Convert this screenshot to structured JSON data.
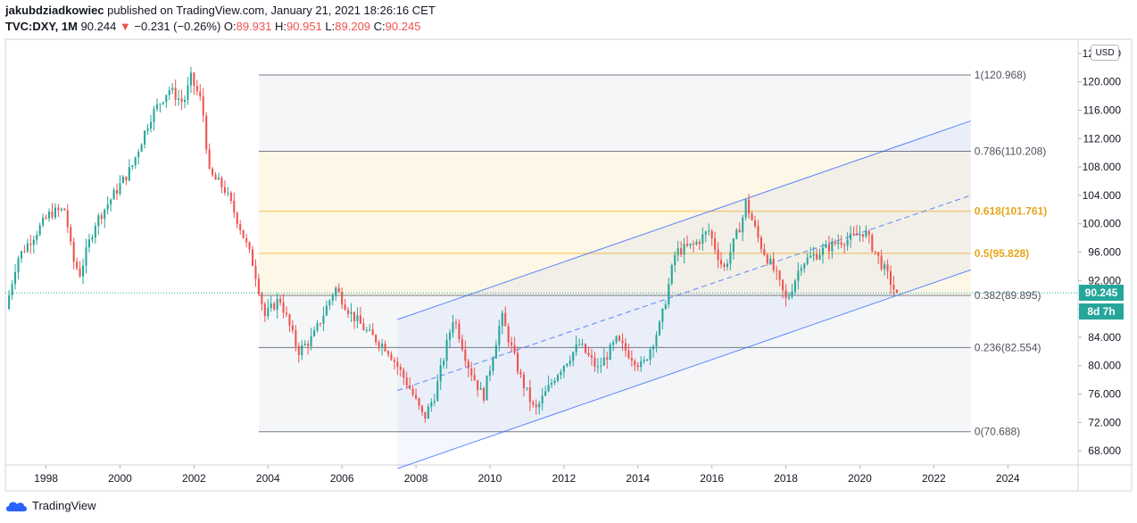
{
  "header": {
    "author": "jakubdziadkowiec",
    "published_text": " published on TradingView.com, January 21, 2021 18:26:16 CET",
    "symbol": "TVC:DXY, 1M",
    "last": "90.244",
    "change_arrow": "▼",
    "change": "−0.231 (−0.26%)",
    "o_label": "O:",
    "o_value": "89.931",
    "h_label": "H:",
    "h_value": "90.951",
    "l_label": "L:",
    "l_value": "89.209",
    "c_label": "C:",
    "c_value": "90.245"
  },
  "price_axis": {
    "currency_button": "USD",
    "current_price": "90.245",
    "countdown": "8d 7h",
    "ticks": [
      "124.000",
      "120.000",
      "116.000",
      "112.000",
      "108.000",
      "104.000",
      "100.000",
      "96.000",
      "92.000",
      "88.000",
      "84.000",
      "80.000",
      "76.000",
      "72.000",
      "68.000"
    ]
  },
  "time_axis": {
    "ticks": [
      "1998",
      "2000",
      "2002",
      "2004",
      "2006",
      "2008",
      "2010",
      "2012",
      "2014",
      "2016",
      "2018",
      "2020",
      "2022",
      "2024"
    ]
  },
  "footer": {
    "brand": "TradingView"
  },
  "colors": {
    "up": "#26a69a",
    "down": "#ef5350",
    "channel": "#2962ff",
    "fib_line": "#787b86",
    "fib_gold": "#f7c245",
    "current": "#26a69a"
  },
  "chart_data": {
    "type": "candlestick",
    "symbol": "TVC:DXY",
    "interval": "1M",
    "ylim": [
      66,
      126
    ],
    "xlim": [
      1996.9,
      2025.9
    ],
    "fib_retracement": [
      {
        "ratio": "1",
        "price": "120.968",
        "value": 120.968,
        "highlight": false
      },
      {
        "ratio": "0.786",
        "price": "110.208",
        "value": 110.208,
        "highlight": false
      },
      {
        "ratio": "0.618",
        "price": "101.761",
        "value": 101.761,
        "highlight": true
      },
      {
        "ratio": "0.5",
        "price": "95.828",
        "value": 95.828,
        "highlight": true
      },
      {
        "ratio": "0.382",
        "price": "89.895",
        "value": 89.895,
        "highlight": false
      },
      {
        "ratio": "0.236",
        "price": "82.554",
        "value": 82.554,
        "highlight": false
      },
      {
        "ratio": "0",
        "price": "70.688",
        "value": 70.688,
        "highlight": false
      }
    ],
    "fib_range": {
      "x_start": 2003.75,
      "x_end": 2023.0
    },
    "channel": {
      "upper": [
        [
          2007.5,
          86.5
        ],
        [
          2023.0,
          114.5
        ]
      ],
      "middle": [
        [
          2007.5,
          76.5
        ],
        [
          2023.0,
          104.0
        ]
      ],
      "lower": [
        [
          2007.5,
          65.5
        ],
        [
          2023.0,
          93.5
        ]
      ]
    },
    "price_path": [
      [
        1997.0,
        88.0
      ],
      [
        1997.3,
        95.0
      ],
      [
        1997.7,
        98.0
      ],
      [
        1998.2,
        101.5
      ],
      [
        1998.6,
        102.0
      ],
      [
        1998.8,
        95.0
      ],
      [
        1999.0,
        93.0
      ],
      [
        1999.4,
        100.0
      ],
      [
        1999.9,
        104.0
      ],
      [
        2000.4,
        108.0
      ],
      [
        2000.9,
        115.0
      ],
      [
        2001.4,
        119.0
      ],
      [
        2001.8,
        117.0
      ],
      [
        2002.0,
        120.5
      ],
      [
        2002.3,
        117.0
      ],
      [
        2002.5,
        107.0
      ],
      [
        2002.9,
        105.0
      ],
      [
        2003.3,
        100.0
      ],
      [
        2003.7,
        94.0
      ],
      [
        2004.0,
        87.0
      ],
      [
        2004.4,
        89.5
      ],
      [
        2004.9,
        82.0
      ],
      [
        2005.3,
        84.0
      ],
      [
        2005.9,
        91.0
      ],
      [
        2006.3,
        87.5
      ],
      [
        2006.8,
        84.5
      ],
      [
        2007.3,
        82.5
      ],
      [
        2007.9,
        77.0
      ],
      [
        2008.3,
        72.5
      ],
      [
        2008.6,
        76.0
      ],
      [
        2009.1,
        87.0
      ],
      [
        2009.5,
        80.0
      ],
      [
        2009.9,
        75.5
      ],
      [
        2010.4,
        87.0
      ],
      [
        2010.9,
        78.5
      ],
      [
        2011.3,
        73.5
      ],
      [
        2011.9,
        79.0
      ],
      [
        2012.5,
        83.0
      ],
      [
        2013.0,
        79.5
      ],
      [
        2013.5,
        83.5
      ],
      [
        2014.2,
        79.8
      ],
      [
        2014.7,
        86.0
      ],
      [
        2015.1,
        96.0
      ],
      [
        2015.6,
        97.0
      ],
      [
        2016.0,
        99.0
      ],
      [
        2016.4,
        93.5
      ],
      [
        2016.9,
        100.5
      ],
      [
        2017.0,
        103.0
      ],
      [
        2017.4,
        97.0
      ],
      [
        2017.8,
        93.0
      ],
      [
        2018.1,
        89.0
      ],
      [
        2018.5,
        94.5
      ],
      [
        2019.0,
        96.0
      ],
      [
        2019.5,
        97.5
      ],
      [
        2019.9,
        98.0
      ],
      [
        2020.2,
        99.0
      ],
      [
        2020.5,
        96.0
      ],
      [
        2020.9,
        92.0
      ],
      [
        2021.05,
        90.24
      ]
    ],
    "current_price": 90.245
  }
}
